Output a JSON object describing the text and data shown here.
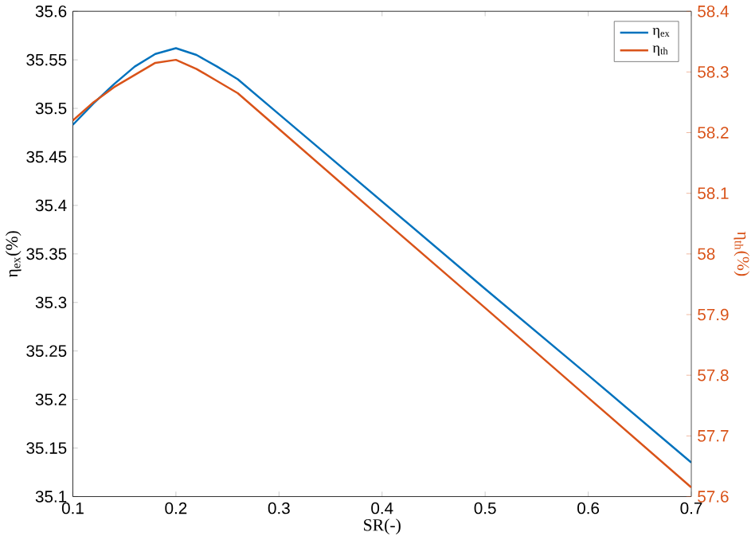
{
  "chart_data": {
    "type": "line",
    "xlabel": "SR(-)",
    "ylabel": "η$_{ex}$(%)",
    "y2label": "η$_{th}$(%)",
    "x": [
      0.1,
      0.12,
      0.14,
      0.16,
      0.18,
      0.2,
      0.22,
      0.24,
      0.26,
      0.3,
      0.4,
      0.5,
      0.6,
      0.7
    ],
    "series": [
      {
        "name": "η$_{ex}$",
        "color": "#0072bd",
        "values": [
          35.483,
          35.505,
          35.525,
          35.543,
          35.556,
          35.562,
          35.555,
          35.543,
          35.53,
          35.494,
          35.404,
          35.314,
          35.225,
          35.135
        ]
      },
      {
        "name": "η$_{th}$",
        "color": "#d95319",
        "axis": "y2",
        "values": [
          58.22,
          58.25,
          58.275,
          58.295,
          58.315,
          58.32,
          58.305,
          58.285,
          58.265,
          58.206,
          58.058,
          57.911,
          57.763,
          57.615
        ]
      }
    ],
    "xlim": [
      0.1,
      0.7
    ],
    "xticks": [
      0.1,
      0.2,
      0.3,
      0.4,
      0.5,
      0.6,
      0.7
    ],
    "ylim": [
      35.1,
      35.6
    ],
    "yticks": [
      35.1,
      35.15,
      35.2,
      35.25,
      35.3,
      35.35,
      35.4,
      35.45,
      35.5,
      35.55,
      35.6
    ],
    "y2lim": [
      57.6,
      58.4
    ],
    "y2ticks": [
      57.6,
      57.7,
      57.8,
      57.9,
      58,
      58.1,
      58.2,
      58.3,
      58.4
    ],
    "legend": "top right",
    "grid": false,
    "marker": "none",
    "line_style": "solid"
  }
}
